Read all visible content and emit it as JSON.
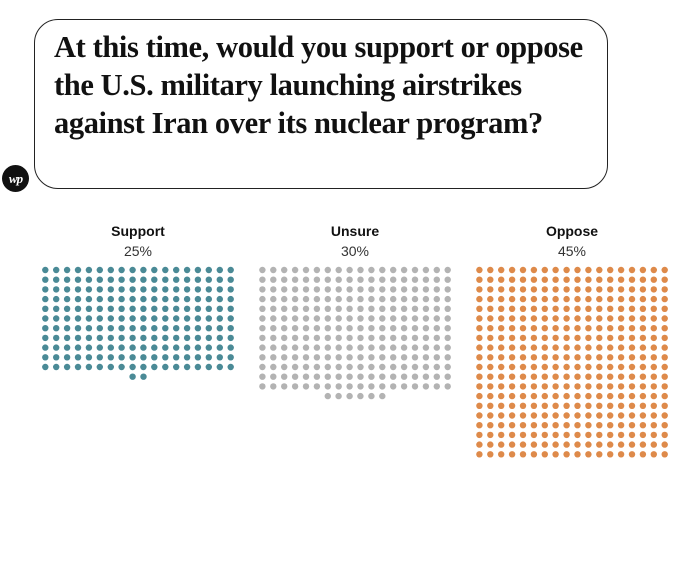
{
  "header": {
    "question": "At this time, would you support or oppose the U.S. military launching airstrikes against Iran over its nuclear program?"
  },
  "logo": {
    "text": "wp",
    "icon": "washington-post-logo"
  },
  "chart_data": {
    "type": "dot-matrix",
    "title": "At this time, would you support or oppose the U.S. military launching airstrikes against Iran over its nuclear program?",
    "unit": "%",
    "categories": [
      "Support",
      "Unsure",
      "Oppose"
    ],
    "values": [
      25,
      30,
      45
    ],
    "value_labels": [
      "25%",
      "30%",
      "45%"
    ],
    "colors": [
      "#4a8a96",
      "#b3b3b3",
      "#de8a4a"
    ],
    "legend": "none",
    "grid": false
  }
}
